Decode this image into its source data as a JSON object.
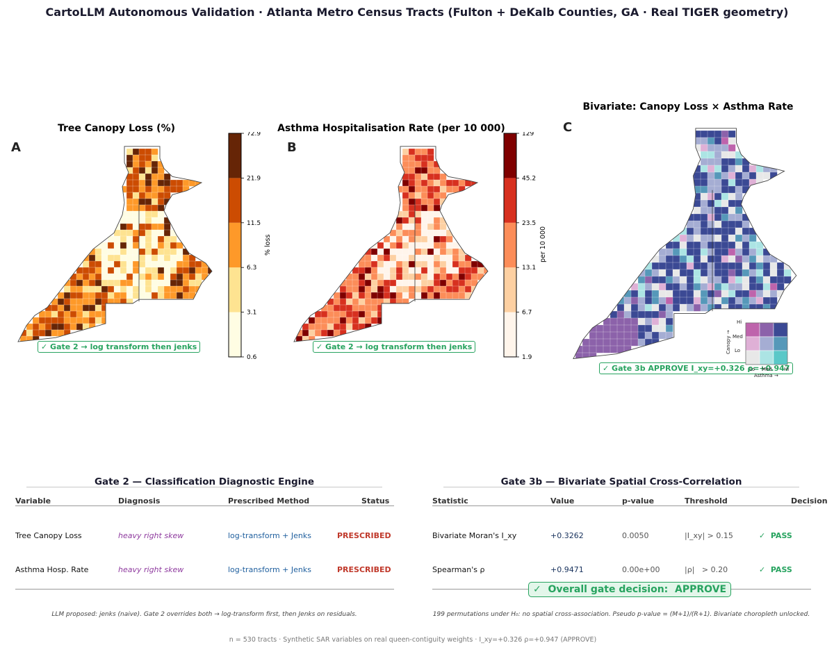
{
  "page_title": "CartoLLM Autonomous Validation  ·  Atlanta Metro Census Tracts  (Fulton + DeKalb Counties, GA  ·  Real TIGER geometry)",
  "colors": {
    "orange_ramp": [
      "#fffde3",
      "#fee391",
      "#fe9929",
      "#cc4c02",
      "#662506"
    ],
    "red_ramp": [
      "#fff5eb",
      "#fdd0a2",
      "#fc8d59",
      "#d7301f",
      "#7f0000"
    ],
    "bivariate": [
      "#e8e8e8",
      "#ace4e4",
      "#5ac8c8",
      "#dfb0d6",
      "#a5add3",
      "#5698b9",
      "#be64ac",
      "#8c62aa",
      "#3b4994"
    ],
    "pass_green": "#27a35f",
    "prescribed_red": "#c0392b"
  },
  "chart_data": [
    {
      "type": "choropleth",
      "panel": "A",
      "title": "Tree Canopy Loss (%)",
      "colorbar_label": "% loss",
      "class_breaks": [
        0.6,
        3.1,
        6.3,
        11.5,
        21.9,
        72.9
      ],
      "class_breaks_labels": [
        "0.6",
        "3.1",
        "6.3",
        "11.5",
        "21.9",
        "72.9"
      ],
      "badge": "✓ Gate 2 → log transform then jenks"
    },
    {
      "type": "choropleth",
      "panel": "B",
      "title": "Asthma Hospitalisation Rate (per 10 000)",
      "colorbar_label": "per 10 000",
      "class_breaks": [
        1.9,
        6.7,
        13.1,
        23.5,
        45.2,
        129
      ],
      "class_breaks_labels": [
        "1.9",
        "6.7",
        "13.1",
        "23.5",
        "45.2",
        "129"
      ],
      "badge": "✓ Gate 2 → log transform then jenks"
    },
    {
      "type": "bivariate-choropleth",
      "panel": "C",
      "title": "Bivariate: Canopy Loss × Asthma Rate",
      "badge": "✓ Gate 3b APPROVE  I_xy=+0.326  ρ=+0.947",
      "legend": {
        "y_axis": "Canopy →",
        "x_axis": "Asthma →",
        "levels": [
          "Lo",
          "Med",
          "Hi"
        ]
      }
    }
  ],
  "gate2": {
    "title": "Gate 2 — Classification Diagnostic Engine",
    "headers": [
      "Variable",
      "Diagnosis",
      "Prescribed Method",
      "Status"
    ],
    "rows": [
      {
        "variable": "Tree Canopy Loss",
        "diagnosis": "heavy right skew",
        "method": "log-transform + Jenks",
        "status": "PRESCRIBED"
      },
      {
        "variable": "Asthma Hosp. Rate",
        "diagnosis": "heavy right skew",
        "method": "log-transform + Jenks",
        "status": "PRESCRIBED"
      }
    ],
    "footnote": "LLM proposed: jenks (naive).  Gate 2 overrides both → log-transform first, then Jenks on residuals."
  },
  "gate3b": {
    "title": "Gate 3b — Bivariate Spatial Cross-Correlation",
    "headers": [
      "Statistic",
      "Value",
      "p-value",
      "Threshold",
      "Decision"
    ],
    "rows": [
      {
        "statistic": "Bivariate Moran's I_xy",
        "value": "+0.3262",
        "pvalue": "0.0050",
        "threshold": "|I_xy| > 0.15",
        "decision": "✓  PASS"
      },
      {
        "statistic": "Spearman's ρ",
        "value": "+0.9471",
        "pvalue": "0.00e+00",
        "threshold": "|ρ|   > 0.20",
        "decision": "✓  PASS"
      }
    ],
    "overall": "✓  Overall gate decision:  APPROVE",
    "footnote": "199 permutations under H₀: no spatial cross-association. Pseudo p-value = (M+1)/(R+1).  Bivariate choropleth unlocked."
  },
  "bottom_line": "n = 530 tracts  ·  Synthetic SAR variables on real queen-contiguity weights  ·  I_xy=+0.326  ρ=+0.947  (APPROVE)"
}
